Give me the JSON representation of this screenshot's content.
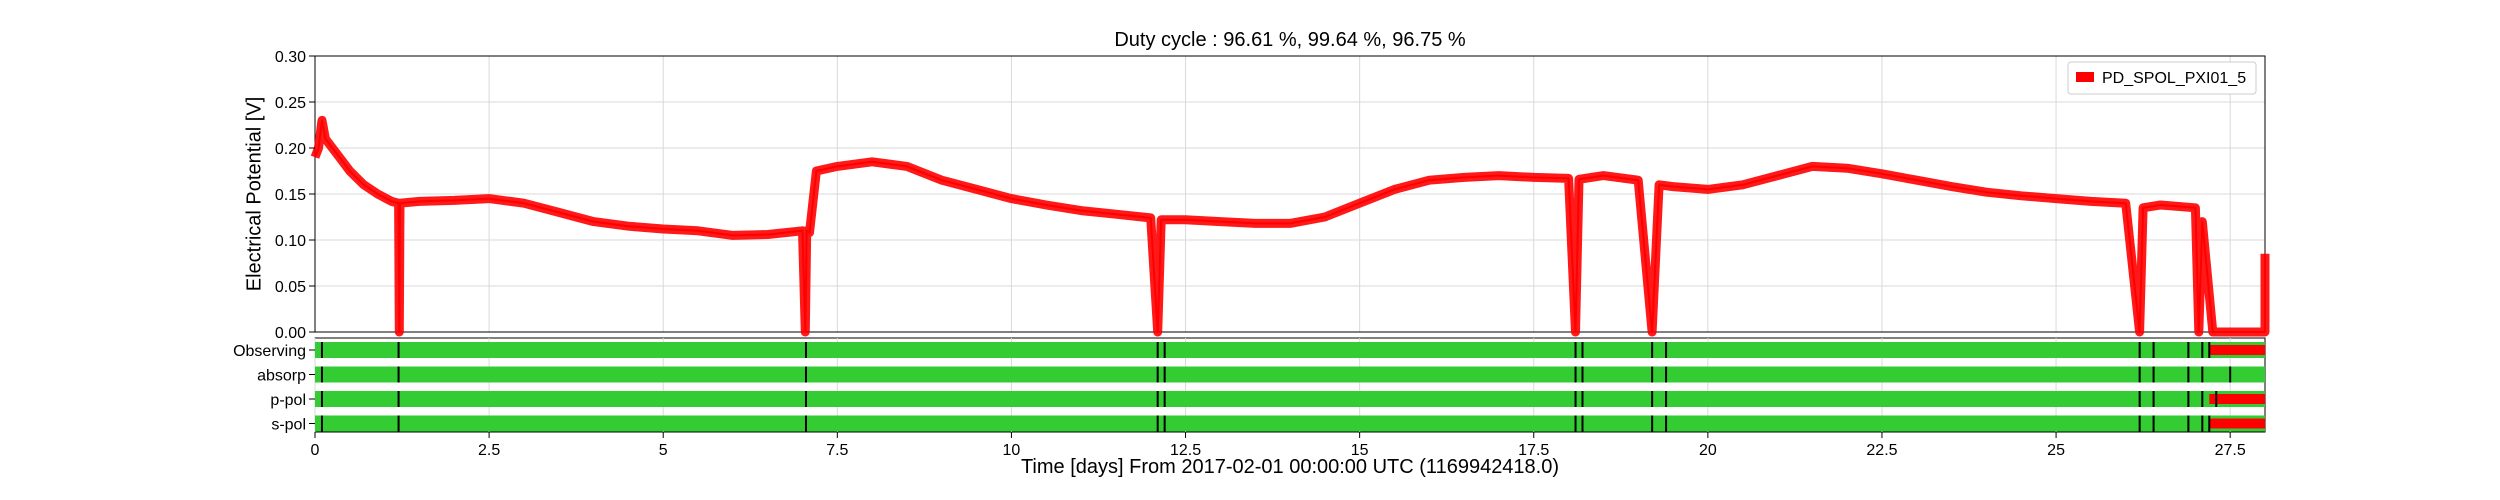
{
  "chart_data": {
    "type": "line",
    "title": "Duty cycle : 96.61 %, 99.64 %, 96.75 %",
    "xlabel": "Time [days] From 2017-02-01 00:00:00 UTC (1169942418.0)",
    "ylabel": "Electrical Potential [V]",
    "xlim": [
      0,
      28
    ],
    "ylim": [
      0,
      0.3
    ],
    "x_ticks": [
      0,
      2.5,
      5,
      7.5,
      10,
      12.5,
      15,
      17.5,
      20,
      22.5,
      25,
      27.5
    ],
    "x_tick_labels": [
      "0",
      "2.5",
      "5",
      "7.5",
      "10",
      "12.5",
      "15",
      "17.5",
      "20",
      "22.5",
      "25",
      "27.5"
    ],
    "y_ticks": [
      0,
      0.05,
      0.1,
      0.15,
      0.2,
      0.25,
      0.3
    ],
    "y_tick_labels": [
      "0.00",
      "0.05",
      "0.10",
      "0.15",
      "0.20",
      "0.25",
      "0.30"
    ],
    "grid": true,
    "legend": {
      "placement": "top-right",
      "entries": [
        "PD_SPOL_PXI01_5"
      ]
    },
    "series": [
      {
        "name": "PD_SPOL_PXI01_5",
        "color": "#ff0000",
        "points": [
          [
            0.0,
            0.19
          ],
          [
            0.05,
            0.2
          ],
          [
            0.1,
            0.23
          ],
          [
            0.15,
            0.21
          ],
          [
            0.25,
            0.2
          ],
          [
            0.35,
            0.19
          ],
          [
            0.5,
            0.175
          ],
          [
            0.7,
            0.16
          ],
          [
            0.9,
            0.15
          ],
          [
            1.1,
            0.142
          ],
          [
            1.2,
            0.14
          ],
          [
            1.21,
            0.0
          ],
          [
            1.22,
            0.14
          ],
          [
            1.5,
            0.142
          ],
          [
            2.0,
            0.143
          ],
          [
            2.5,
            0.145
          ],
          [
            3.0,
            0.14
          ],
          [
            3.5,
            0.13
          ],
          [
            4.0,
            0.12
          ],
          [
            4.5,
            0.115
          ],
          [
            5.0,
            0.112
          ],
          [
            5.5,
            0.11
          ],
          [
            6.0,
            0.105
          ],
          [
            6.5,
            0.106
          ],
          [
            7.0,
            0.11
          ],
          [
            7.04,
            0.0
          ],
          [
            7.06,
            0.11
          ],
          [
            7.1,
            0.108
          ],
          [
            7.2,
            0.175
          ],
          [
            7.5,
            0.18
          ],
          [
            8.0,
            0.185
          ],
          [
            8.5,
            0.18
          ],
          [
            9.0,
            0.165
          ],
          [
            9.5,
            0.155
          ],
          [
            10.0,
            0.145
          ],
          [
            10.5,
            0.138
          ],
          [
            11.0,
            0.132
          ],
          [
            11.5,
            0.128
          ],
          [
            12.0,
            0.124
          ],
          [
            12.1,
            0.0
          ],
          [
            12.15,
            0.122
          ],
          [
            12.5,
            0.122
          ],
          [
            13.0,
            0.12
          ],
          [
            13.5,
            0.118
          ],
          [
            14.0,
            0.118
          ],
          [
            14.5,
            0.125
          ],
          [
            15.0,
            0.14
          ],
          [
            15.5,
            0.155
          ],
          [
            16.0,
            0.165
          ],
          [
            16.5,
            0.168
          ],
          [
            17.0,
            0.17
          ],
          [
            17.5,
            0.168
          ],
          [
            18.0,
            0.167
          ],
          [
            18.1,
            0.0
          ],
          [
            18.15,
            0.166
          ],
          [
            18.5,
            0.17
          ],
          [
            19.0,
            0.165
          ],
          [
            19.2,
            0.0
          ],
          [
            19.3,
            0.16
          ],
          [
            19.5,
            0.158
          ],
          [
            20.0,
            0.155
          ],
          [
            20.5,
            0.16
          ],
          [
            21.0,
            0.17
          ],
          [
            21.5,
            0.18
          ],
          [
            22.0,
            0.178
          ],
          [
            22.5,
            0.172
          ],
          [
            23.0,
            0.165
          ],
          [
            23.5,
            0.158
          ],
          [
            24.0,
            0.152
          ],
          [
            24.5,
            0.148
          ],
          [
            25.0,
            0.145
          ],
          [
            25.5,
            0.142
          ],
          [
            26.0,
            0.14
          ],
          [
            26.2,
            0.0
          ],
          [
            26.25,
            0.135
          ],
          [
            26.5,
            0.138
          ],
          [
            27.0,
            0.135
          ],
          [
            27.05,
            0.0
          ],
          [
            27.1,
            0.12
          ],
          [
            27.25,
            0.0
          ],
          [
            27.3,
            0.0
          ],
          [
            27.6,
            0.0
          ],
          [
            28.0,
            0.0
          ],
          [
            28.0,
            0.085
          ]
        ]
      }
    ],
    "segments": {
      "colors": {
        "active": "#33cc33",
        "inactive": "#ff0000",
        "marker": "#000000"
      },
      "rows": [
        {
          "label": "Observing",
          "inactive": [
            [
              27.2,
              28.0
            ]
          ],
          "markers": [
            0.1,
            1.2,
            7.05,
            12.1,
            12.2,
            18.1,
            18.2,
            19.2,
            19.4,
            26.2,
            26.4,
            26.9,
            27.1,
            27.2
          ]
        },
        {
          "label": "absorp",
          "inactive": [],
          "markers": [
            0.1,
            1.2,
            7.05,
            12.1,
            12.2,
            18.1,
            18.2,
            19.2,
            19.4,
            26.2,
            26.4,
            26.9,
            27.1,
            27.5
          ]
        },
        {
          "label": "p-pol",
          "inactive": [
            [
              27.2,
              28.0
            ]
          ],
          "markers": [
            0.1,
            1.2,
            7.05,
            12.1,
            12.2,
            18.1,
            18.2,
            19.2,
            19.4,
            26.2,
            26.4,
            26.9,
            27.1,
            27.3
          ]
        },
        {
          "label": "s-pol",
          "inactive": [
            [
              27.2,
              28.0
            ]
          ],
          "markers": [
            0.1,
            1.2,
            7.05,
            12.1,
            12.2,
            18.1,
            18.2,
            19.2,
            19.4,
            26.2,
            26.4,
            26.9,
            27.1,
            27.2
          ]
        }
      ]
    }
  }
}
